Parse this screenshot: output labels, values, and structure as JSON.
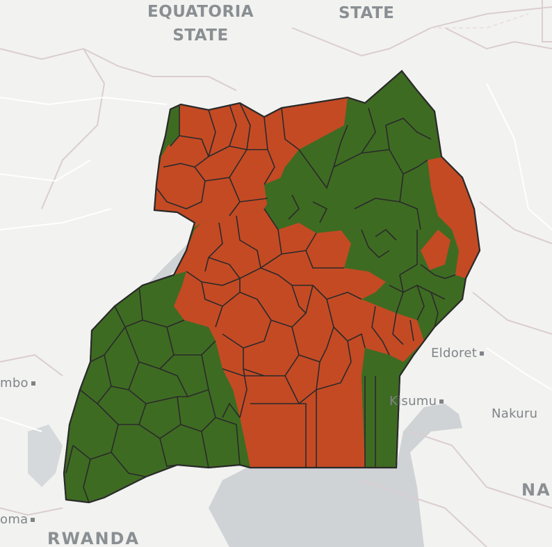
{
  "map": {
    "colors": {
      "land": "#f2f2f0",
      "water": "#cfd3d6",
      "border": "#d9cfd3",
      "road": "#ffffff",
      "green_region": "#3e6b22",
      "orange_region": "#c44a24",
      "outline": "#2a2a2a"
    },
    "place_labels": {
      "equatoria_line1": "EQUATORIA",
      "equatoria_line2": "STATE",
      "state_top": "STATE",
      "eldoret": "Eldoret",
      "kisumu": "Kisumu",
      "nakuru": "Nakuru",
      "mbo": "mbo",
      "oma": "oma",
      "rwanda": "RWANDA",
      "na": "NA"
    }
  }
}
